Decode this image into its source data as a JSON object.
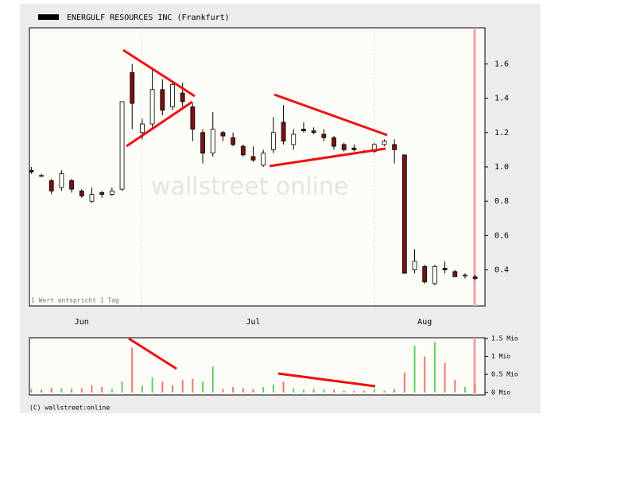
{
  "chart_data": [
    {
      "type": "candlestick",
      "title": "ENERGULF RESOURCES INC (Frankfurt)",
      "watermark": "wallstreet online",
      "note": "1 Wert entspricht 1 Tag",
      "footer": "(C) wallstreet:online",
      "categories": [
        null,
        null,
        null,
        null,
        null,
        "Jun",
        null,
        null,
        null,
        null,
        null,
        null,
        null,
        null,
        null,
        null,
        null,
        null,
        null,
        null,
        null,
        null,
        "Jul",
        null,
        null,
        null,
        null,
        null,
        null,
        null,
        null,
        null,
        null,
        null,
        null,
        null,
        null,
        null,
        null,
        "Aug",
        null,
        null,
        null,
        null,
        null
      ],
      "open": [
        0.98,
        0.95,
        0.92,
        0.88,
        0.92,
        0.86,
        0.8,
        0.85,
        0.84,
        0.87,
        1.55,
        1.2,
        1.25,
        1.45,
        1.35,
        1.43,
        1.35,
        1.2,
        1.08,
        1.2,
        1.17,
        1.12,
        1.06,
        1.01,
        1.1,
        1.26,
        1.13,
        1.22,
        1.21,
        1.19,
        1.17,
        1.13,
        1.11,
        1.09,
        1.09,
        1.13,
        1.13,
        1.07,
        0.4,
        0.42,
        0.32,
        0.41,
        0.39,
        0.37,
        0.36
      ],
      "high": [
        1.0,
        0.96,
        0.93,
        0.98,
        0.93,
        0.87,
        0.88,
        0.86,
        0.88,
        1.38,
        1.6,
        1.28,
        1.58,
        1.51,
        1.5,
        1.49,
        1.37,
        1.22,
        1.32,
        1.21,
        1.2,
        1.13,
        1.12,
        1.1,
        1.29,
        1.36,
        1.22,
        1.26,
        1.23,
        1.22,
        1.18,
        1.14,
        1.13,
        1.1,
        1.14,
        1.16,
        1.16,
        1.07,
        0.52,
        0.43,
        0.43,
        0.45,
        0.4,
        0.38,
        0.37
      ],
      "low": [
        0.96,
        0.94,
        0.84,
        0.86,
        0.85,
        0.82,
        0.79,
        0.82,
        0.83,
        0.86,
        1.22,
        1.16,
        1.23,
        1.3,
        1.33,
        1.35,
        1.15,
        1.02,
        1.06,
        1.15,
        1.12,
        1.06,
        1.03,
        1.0,
        1.08,
        1.13,
        1.1,
        1.2,
        1.19,
        1.15,
        1.1,
        1.09,
        1.09,
        1.08,
        1.08,
        1.12,
        1.02,
        0.38,
        0.38,
        0.32,
        0.31,
        0.38,
        0.36,
        0.35,
        0.34
      ],
      "close": [
        0.97,
        0.95,
        0.86,
        0.96,
        0.87,
        0.83,
        0.84,
        0.84,
        0.86,
        1.38,
        1.37,
        1.25,
        1.45,
        1.33,
        1.48,
        1.38,
        1.22,
        1.08,
        1.22,
        1.18,
        1.13,
        1.07,
        1.04,
        1.08,
        1.2,
        1.15,
        1.19,
        1.21,
        1.2,
        1.17,
        1.12,
        1.1,
        1.1,
        1.09,
        1.13,
        1.15,
        1.1,
        0.38,
        0.45,
        0.33,
        0.42,
        0.4,
        0.36,
        0.37,
        0.35
      ],
      "up_color": "#ffffff",
      "down_color": "#7a1010",
      "ylim": [
        0.19,
        1.81
      ],
      "yticks": [
        0.4,
        0.6,
        0.8,
        {
          "value": 1,
          "label": "1.0"
        },
        1.2,
        1.4,
        1.6
      ]
    },
    {
      "type": "volume",
      "values": [
        0.1,
        0.08,
        0.12,
        0.12,
        0.1,
        0.12,
        0.2,
        0.15,
        0.1,
        0.3,
        1.25,
        0.18,
        0.42,
        0.3,
        0.2,
        0.35,
        0.38,
        0.3,
        0.72,
        0.1,
        0.15,
        0.12,
        0.1,
        0.15,
        0.22,
        0.3,
        0.12,
        0.08,
        0.1,
        0.08,
        0.08,
        0.05,
        0.05,
        0.05,
        0.1,
        0.05,
        0.1,
        0.55,
        1.3,
        1.0,
        1.4,
        0.82,
        0.35,
        0.15,
        0.22
      ],
      "colors": [
        "#66cc66",
        "#ee7777",
        "#ee7777",
        "#66cc66",
        "#ee7777",
        "#ee7777",
        "#ee7777",
        "#ee7777",
        "#66cc66",
        "#66cc66",
        "#ee7777",
        "#66cc66",
        "#66cc66",
        "#ee7777",
        "#ee7777",
        "#ee7777",
        "#ee7777",
        "#66cc66",
        "#66cc66",
        "#ee7777",
        "#ee7777",
        "#ee7777",
        "#ee7777",
        "#66cc66",
        "#66cc66",
        "#ee7777",
        "#66cc66",
        "#66cc66",
        "#66cc66",
        "#66cc66",
        "#ee7777",
        "#ee7777",
        "#ee7777",
        "#ee7777",
        "#66cc66",
        "#66cc66",
        "#ee7777",
        "#ee7777",
        "#66cc66",
        "#ee7777",
        "#66cc66",
        "#ee7777",
        "#ee7777",
        "#66cc66",
        "#ee7777"
      ],
      "ylim": [
        -0.07,
        1.52
      ],
      "yticks": [
        {
          "value": 0,
          "label": "0 Mio"
        },
        {
          "value": 0.5,
          "label": "0.5 Mio"
        },
        {
          "value": 1,
          "label": "1 Mio"
        },
        {
          "value": 1.5,
          "label": "1.5 Mio"
        }
      ]
    }
  ]
}
